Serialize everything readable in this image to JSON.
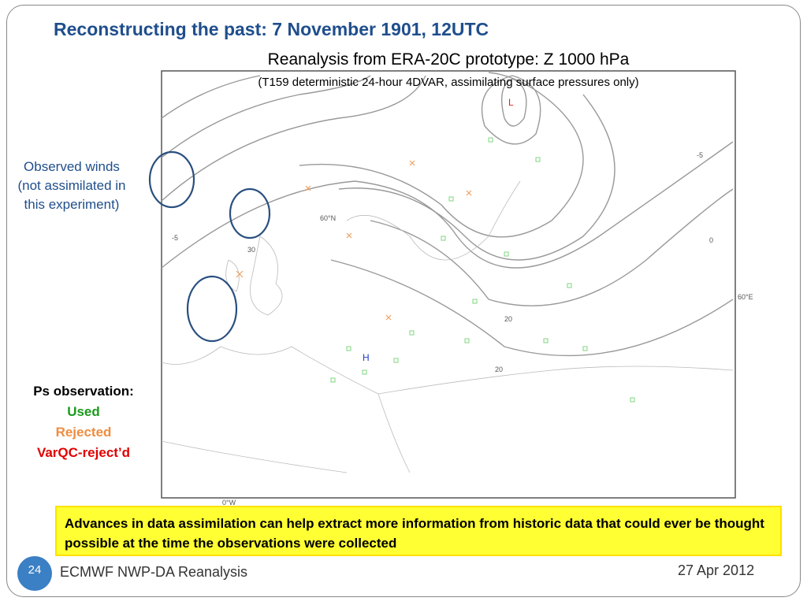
{
  "slide": {
    "title": "Reconstructing the past: 7 November 1901, 12UTC",
    "map": {
      "title": "Reanalysis from ERA-20C prototype: Z 1000 hPa",
      "subtitle": "(T159 deterministic 24-hour 4DVAR, assimilating surface pressures only)",
      "labels": {
        "low": "L",
        "high": "H",
        "lat": "60°N",
        "lon_east": "60°E",
        "lon_zero": "0°W"
      },
      "contour_labels": [
        "20",
        "20",
        "30",
        "0",
        "-5",
        "-5"
      ]
    },
    "winds_note": "Observed winds (not assimilated in this experiment)",
    "legend": {
      "heading": "Ps observation:",
      "used": "Used",
      "rejected": "Rejected",
      "varqc": "VarQC-reject’d"
    },
    "highlight": "Advances in data assimilation can help extract more information from historic data that could ever be thought possible at the time the observations were collected",
    "page_number": "24",
    "footer": "ECMWF NWP-DA Reanalysis",
    "date": "27 Apr 2012"
  }
}
